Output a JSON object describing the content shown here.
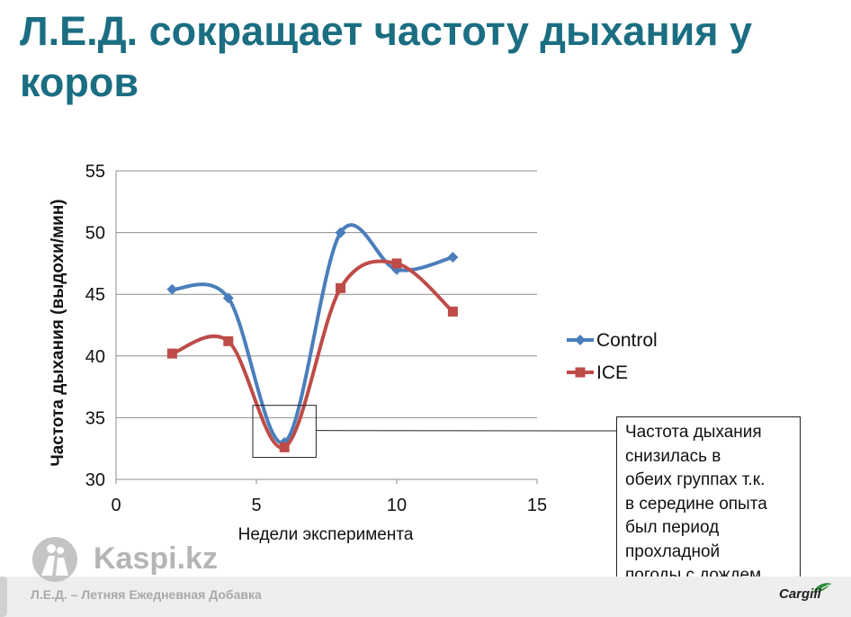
{
  "slide": {
    "title": "Л.Е.Д. сокращает частоту дыхания у коров",
    "note_lines": [
      "Частота дыхания",
      "снизилась в",
      "обеих группах т.к.",
      "в середине опыта",
      "был период",
      "прохладной",
      "погоды с дождем"
    ],
    "footer_text": "Л.Е.Д. – Летняя Ежедневная Добавка",
    "watermark_text": "Kaspi.kz",
    "brand_logo_text": "Cargill",
    "colors": {
      "title": "#1b6e82",
      "control": "#4a7ebb",
      "ice": "#be4b48"
    }
  },
  "chart_data": {
    "type": "scatter",
    "title": "",
    "xlabel": "Недели эксперимента",
    "ylabel": "Частота дыхания (выдохи/мин)",
    "xlim": [
      0,
      15
    ],
    "ylim": [
      30,
      55
    ],
    "xticks": [
      "0",
      "5",
      "10",
      "15"
    ],
    "yticks": [
      "30",
      "35",
      "40",
      "45",
      "50",
      "55"
    ],
    "grid": "horizontal",
    "legend_position": "right",
    "smooth_lines": true,
    "series": [
      {
        "name": "Control",
        "marker": "diamond",
        "color": "#4a7ebb",
        "x": [
          2,
          4,
          6,
          8,
          10,
          12
        ],
        "y": [
          45.4,
          44.7,
          33.0,
          50.0,
          47.0,
          48.0
        ]
      },
      {
        "name": "ICE",
        "marker": "square",
        "color": "#be4b48",
        "x": [
          2,
          4,
          6,
          8,
          10,
          12
        ],
        "y": [
          40.2,
          41.2,
          32.6,
          45.5,
          47.5,
          43.6
        ]
      }
    ],
    "annotation": {
      "target_x_range": [
        5,
        7
      ],
      "target_y_range": [
        32,
        36
      ]
    }
  }
}
